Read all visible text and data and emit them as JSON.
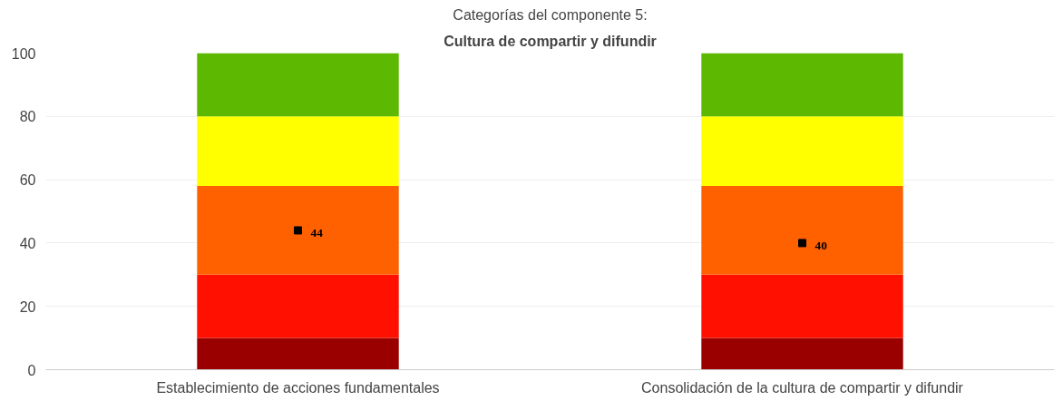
{
  "chart_data": {
    "type": "bar",
    "title": "Categorías del componente 5:",
    "subtitle": "Cultura de compartir y difundir",
    "categories": [
      "Establecimiento de acciones fundamentales",
      "Consolidación de la cultura de compartir y difundir"
    ],
    "stacked": true,
    "series": [
      {
        "color": "#9a0000",
        "values": [
          10,
          10
        ]
      },
      {
        "color": "#ff1000",
        "values": [
          20,
          20
        ]
      },
      {
        "color": "#ff6000",
        "values": [
          28,
          28
        ]
      },
      {
        "color": "#ffff00",
        "values": [
          22,
          22
        ]
      },
      {
        "color": "#5cb800",
        "values": [
          20,
          20
        ]
      },
      {
        "type": "scatter",
        "marker": "square",
        "color": "#000000",
        "values": [
          44,
          40
        ],
        "data_labels": true
      }
    ],
    "ylim": [
      0,
      100
    ],
    "yticks": [
      0,
      20,
      40,
      60,
      80,
      100
    ],
    "grid": "y"
  }
}
